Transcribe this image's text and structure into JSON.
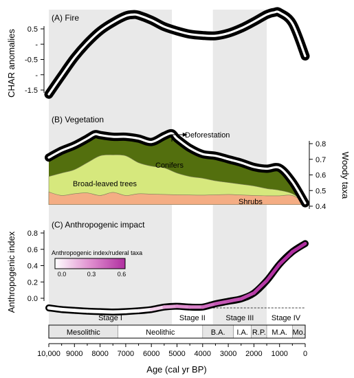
{
  "chart_data": {
    "type": "line",
    "x_axis": {
      "label": "Age (cal yr BP)",
      "range": [
        10000,
        0
      ],
      "ticks": [
        10000,
        9000,
        8000,
        7000,
        6000,
        5000,
        4000,
        3000,
        2000,
        1000,
        0
      ],
      "tick_labels": [
        "10,000",
        "9000",
        "8000",
        "7000",
        "6000",
        "5000",
        "4000",
        "3000",
        "2000",
        "1000",
        "0"
      ]
    },
    "shaded_bands": [
      [
        10000,
        5200
      ],
      [
        3600,
        1500
      ]
    ],
    "stages": [
      {
        "label": "Stage I",
        "from": 10000,
        "to": 5200
      },
      {
        "label": "Stage II",
        "from": 5200,
        "to": 3600
      },
      {
        "label": "Stage III",
        "from": 3600,
        "to": 1500
      },
      {
        "label": "Stage IV",
        "from": 1500,
        "to": 0
      }
    ],
    "periods": [
      {
        "label": "Mesolithic",
        "from": 10000,
        "to": 7300,
        "fill": "#e6e6e6"
      },
      {
        "label": "Neolithic",
        "from": 7300,
        "to": 4000,
        "fill": "#ffffff"
      },
      {
        "label": "B.A.",
        "from": 4000,
        "to": 2800,
        "fill": "#e6e6e6"
      },
      {
        "label": "I.A.",
        "from": 2800,
        "to": 2100,
        "fill": "#ffffff"
      },
      {
        "label": "R.P.",
        "from": 2100,
        "to": 1500,
        "fill": "#e6e6e6"
      },
      {
        "label": "M.A.",
        "from": 1500,
        "to": 500,
        "fill": "#ffffff"
      },
      {
        "label": "Mo.",
        "from": 500,
        "to": 0,
        "fill": "#e6e6e6"
      }
    ],
    "panels": [
      {
        "id": "fire",
        "title": "(A) Fire",
        "ylabel": "CHAR anomalies",
        "y_ticks": [
          0.5,
          0,
          -0.5,
          -1,
          -1.5
        ],
        "y_tick_labels": [
          "0.5",
          "-",
          "-0.5",
          "-",
          "-1.5"
        ],
        "ylim": [
          -2.2,
          0.85
        ],
        "series": [
          {
            "x": [
              10000,
              9500,
              9000,
              8500,
              8000,
              7500,
              7000,
              6700,
              6500,
              6000,
              5500,
              5000,
              4500,
              4000,
              3500,
              3000,
              2500,
              2000,
              1500,
              1200,
              1000,
              500,
              0
            ],
            "y": [
              -1.72,
              -1.15,
              -0.6,
              -0.15,
              0.22,
              0.48,
              0.68,
              0.72,
              0.7,
              0.55,
              0.35,
              0.22,
              0.12,
              0.08,
              0.07,
              0.15,
              0.3,
              0.5,
              0.72,
              0.79,
              0.78,
              0.45,
              -0.55
            ]
          }
        ]
      },
      {
        "id": "vegetation",
        "title": "(B) Vegetation",
        "ylabel": "Woody taxa",
        "y_ticks": [
          0.8,
          0.7,
          0.6,
          0.5,
          0.4
        ],
        "y_tick_labels": [
          "0.8",
          "0.7",
          "0.6",
          "0.5",
          "0.4"
        ],
        "ylim": [
          0.4,
          0.85
        ],
        "series": [
          {
            "x": [
              10000,
              9500,
              9000,
              8500,
              8200,
              8000,
              7500,
              7000,
              6500,
              6000,
              5500,
              5200,
              5000,
              4500,
              4000,
              3500,
              3000,
              2500,
              2000,
              1500,
              1000,
              500,
              0
            ],
            "y": [
              0.69,
              0.73,
              0.76,
              0.8,
              0.825,
              0.82,
              0.81,
              0.81,
              0.8,
              0.78,
              0.815,
              0.83,
              0.8,
              0.745,
              0.71,
              0.7,
              0.68,
              0.66,
              0.635,
              0.625,
              0.63,
              0.55,
              0.425
            ]
          }
        ],
        "stacked_areas": [
          {
            "name": "Conifers",
            "color": "#536f0e",
            "x": [
              10000,
              9500,
              9000,
              8500,
              8200,
              8000,
              7500,
              7000,
              6500,
              6000,
              5500,
              5200,
              5000,
              4500,
              4000,
              3500,
              3000,
              2500,
              2000,
              1500,
              1000,
              500,
              0
            ],
            "y": [
              0.69,
              0.73,
              0.76,
              0.8,
              0.825,
              0.82,
              0.81,
              0.81,
              0.8,
              0.78,
              0.815,
              0.83,
              0.8,
              0.745,
              0.71,
              0.7,
              0.68,
              0.66,
              0.635,
              0.625,
              0.63,
              0.55,
              0.425
            ]
          },
          {
            "name": "Broad-leaved trees",
            "color": "#d6e87d",
            "x": [
              10000,
              9500,
              9000,
              8500,
              8000,
              7500,
              7000,
              6500,
              6000,
              5500,
              5000,
              4500,
              4000,
              3500,
              3000,
              2500,
              2000,
              1500,
              1000,
              500,
              0
            ],
            "y": [
              0.58,
              0.6,
              0.62,
              0.66,
              0.7,
              0.705,
              0.7,
              0.66,
              0.64,
              0.63,
              0.6,
              0.58,
              0.57,
              0.555,
              0.545,
              0.535,
              0.525,
              0.51,
              0.5,
              0.48,
              0.43
            ]
          },
          {
            "name": "Shrubs",
            "color": "#f4ad84",
            "x": [
              10000,
              9500,
              9000,
              8500,
              8000,
              7500,
              7000,
              6500,
              6000,
              5500,
              5000,
              4500,
              4000,
              3500,
              3000,
              2500,
              2000,
              1500,
              1000,
              500,
              0
            ],
            "y": [
              0.49,
              0.47,
              0.48,
              0.485,
              0.47,
              0.488,
              0.47,
              0.48,
              0.478,
              0.476,
              0.474,
              0.473,
              0.472,
              0.474,
              0.476,
              0.473,
              0.47,
              0.468,
              0.468,
              0.47,
              0.43
            ]
          }
        ],
        "annotations": [
          {
            "text": "Deforestation",
            "x": 4750
          }
        ]
      },
      {
        "id": "anthropogenic",
        "title": "(C) Anthropogenic impact",
        "ylabel": "Anthropogenic index",
        "y_ticks": [
          0.8,
          0.6,
          0.4,
          0.2,
          0.0
        ],
        "y_tick_labels": [
          "0.8",
          "0.6",
          "0.4",
          "0.2",
          "0.0"
        ],
        "ylim": [
          -0.1,
          0.9
        ],
        "baseline": 0.0,
        "series": [
          {
            "x": [
              10000,
              9500,
              9000,
              8500,
              8000,
              7500,
              7000,
              6500,
              6000,
              5500,
              5000,
              4500,
              4000,
              3500,
              3000,
              2500,
              2000,
              1500,
              1000,
              500,
              0
            ],
            "y": [
              -0.0,
              -0.02,
              -0.03,
              -0.04,
              -0.045,
              -0.05,
              -0.045,
              -0.035,
              -0.02,
              0.01,
              0.02,
              0.01,
              0.01,
              0.05,
              0.08,
              0.11,
              0.18,
              0.33,
              0.53,
              0.68,
              0.78
            ],
            "ruderal": [
              0.0,
              0.0,
              0.0,
              0.0,
              0.0,
              0.0,
              0.0,
              0.0,
              0.05,
              0.2,
              0.3,
              0.3,
              0.38,
              0.45,
              0.5,
              0.5,
              0.55,
              0.58,
              0.6,
              0.6,
              0.6
            ]
          }
        ],
        "colorbar": {
          "title": "Anthropogenic index/ruderal taxa",
          "ticks": [
            "0.0",
            "0.3",
            "0.6"
          ],
          "range": [
            0.0,
            0.6
          ],
          "colors": [
            "#ffffff",
            "#e090d0",
            "#b02fa0"
          ]
        }
      }
    ]
  }
}
